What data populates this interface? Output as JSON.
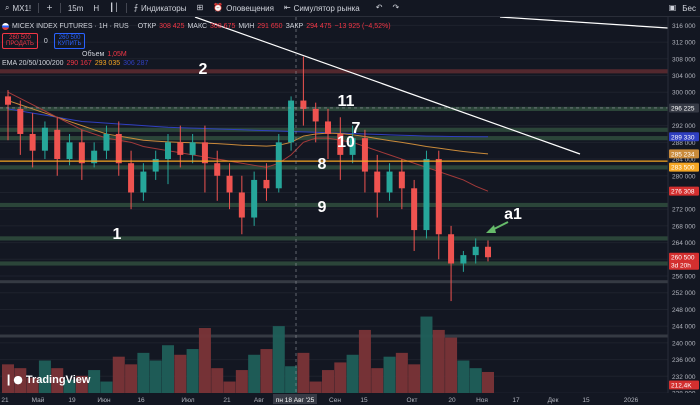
{
  "toolbar": {
    "symbol": "MX1!",
    "add_symbol": "+",
    "interval": "15m",
    "candle_type": "H",
    "indicators_label": "Индикаторы",
    "alerts_label": "Оповещения",
    "replay_label": "Симулятор рынка",
    "right_text": "Бес"
  },
  "legend": {
    "title": "MICEX INDEX FUTURES · 1H · RUS",
    "ohlc": [
      {
        "label": "ОТКР",
        "value": "308 425"
      },
      {
        "label": "МАКС",
        "value": "308 675"
      },
      {
        "label": "МИН",
        "value": "291 650"
      },
      {
        "label": "ЗАКР",
        "value": "294 475"
      }
    ],
    "change": "−13 925 (−4,52%)",
    "sell_price": "260 500",
    "sell_label": "ПРОДАТЬ",
    "spread": "0",
    "buy_price": "260 500",
    "buy_label": "КУПИТЬ",
    "volume_label": "Объем",
    "volume_value": "1,05M",
    "ema_label": "EMA 20/50/100/200",
    "ema_values": [
      "290 167",
      "293 035",
      "306 287"
    ]
  },
  "annotations": [
    "2",
    "11",
    "7",
    "10",
    "8",
    "9",
    "1",
    "a1"
  ],
  "colors": {
    "background": "#131722",
    "up": "#26a69a",
    "down": "#ef5350",
    "zone_green": "#2f4a3c",
    "zone_red": "#5b2a30",
    "orange_line": "#f5a623",
    "trend_line": "#ffffff",
    "ema_orange": "#c98a3a",
    "ema_red": "#a33a3a",
    "ema_blue": "#2f3fbf"
  },
  "icons": [
    "search-icon",
    "plus-icon",
    "bar-chart-icon",
    "indicators-icon",
    "grid-icon",
    "alert-icon",
    "replay-icon",
    "undo-icon",
    "redo-icon",
    "camera-icon",
    "down-arrow-icon",
    "settings-icon",
    "tradingview-logo"
  ],
  "chart_data": {
    "type": "candlestick",
    "title": "MICEX INDEX FUTURES · 1H · RUS",
    "ylim": [
      228000,
      318000
    ],
    "y_ticks": [
      316000,
      312000,
      308000,
      304000,
      300000,
      296000,
      292000,
      288000,
      284000,
      280000,
      276000,
      272000,
      268000,
      264000,
      260000,
      256000,
      252000,
      248000,
      244000,
      240000,
      236000,
      232000,
      228000
    ],
    "x_ticks": [
      "21",
      "Май",
      "19",
      "Июн",
      "16",
      "Июл",
      "21",
      "Авг",
      "пн 18 Авг '25",
      "Сен",
      "15",
      "Окт",
      "20",
      "Ноя",
      "17",
      "Дек",
      "15",
      "2026"
    ],
    "crosshair_x_label": "пн 18 Авг '25",
    "price_labels": [
      {
        "value": "296 225",
        "kind": "crosshair"
      },
      {
        "value": "289 330",
        "kind": "ema-blue"
      },
      {
        "value": "285 234",
        "kind": "ema-orange"
      },
      {
        "value": "283 500",
        "kind": "horizontal-line"
      },
      {
        "value": "276 308",
        "kind": "ema-red"
      },
      {
        "value": "260 500",
        "kind": "last-price"
      },
      {
        "value": "3d 20h",
        "kind": "countdown"
      },
      {
        "value": "212,4K",
        "kind": "volume"
      }
    ],
    "horizontal_line": 283500,
    "zones": [
      {
        "from": 304500,
        "to": 305500,
        "color": "red"
      },
      {
        "from": 295500,
        "to": 296500,
        "color": "green"
      },
      {
        "from": 290500,
        "to": 291500,
        "color": "green"
      },
      {
        "from": 288500,
        "to": 289500,
        "color": "green"
      },
      {
        "from": 281500,
        "to": 282500,
        "color": "green"
      },
      {
        "from": 272500,
        "to": 273500,
        "color": "green"
      },
      {
        "from": 264500,
        "to": 265500,
        "color": "green"
      },
      {
        "from": 258500,
        "to": 259500,
        "color": "green"
      },
      {
        "from": 254500,
        "to": 255000,
        "color": "gray"
      },
      {
        "from": 241500,
        "to": 242000,
        "color": "gray"
      }
    ],
    "candles": [
      {
        "o": 299000,
        "h": 300500,
        "c": 297000,
        "l": 288500
      },
      {
        "o": 296000,
        "h": 298000,
        "c": 290000,
        "l": 285000
      },
      {
        "o": 290000,
        "h": 295000,
        "c": 286000,
        "l": 282000
      },
      {
        "o": 286000,
        "h": 293000,
        "c": 291500,
        "l": 284000
      },
      {
        "o": 291000,
        "h": 294000,
        "c": 284000,
        "l": 280000
      },
      {
        "o": 284000,
        "h": 290000,
        "c": 288000,
        "l": 282500
      },
      {
        "o": 288000,
        "h": 291000,
        "c": 283000,
        "l": 279000
      },
      {
        "o": 283000,
        "h": 288000,
        "c": 286000,
        "l": 282000
      },
      {
        "o": 286000,
        "h": 292000,
        "c": 290000,
        "l": 284000
      },
      {
        "o": 290000,
        "h": 293000,
        "c": 283000,
        "l": 280000
      },
      {
        "o": 283000,
        "h": 286000,
        "c": 276000,
        "l": 272000
      },
      {
        "o": 276000,
        "h": 283000,
        "c": 281000,
        "l": 274000
      },
      {
        "o": 281000,
        "h": 286000,
        "c": 284000,
        "l": 279000
      },
      {
        "o": 284000,
        "h": 290000,
        "c": 288000,
        "l": 278000
      },
      {
        "o": 288000,
        "h": 292000,
        "c": 285000,
        "l": 282000
      },
      {
        "o": 285000,
        "h": 290000,
        "c": 288000,
        "l": 283000
      },
      {
        "o": 288000,
        "h": 292000,
        "c": 283000,
        "l": 276000
      },
      {
        "o": 283000,
        "h": 286000,
        "c": 280000,
        "l": 274000
      },
      {
        "o": 280000,
        "h": 283000,
        "c": 276000,
        "l": 272000
      },
      {
        "o": 276000,
        "h": 280000,
        "c": 270000,
        "l": 266000
      },
      {
        "o": 270000,
        "h": 281000,
        "c": 279000,
        "l": 268000
      },
      {
        "o": 279000,
        "h": 283000,
        "c": 277000,
        "l": 274000
      },
      {
        "o": 277000,
        "h": 290000,
        "c": 288000,
        "l": 276000
      },
      {
        "o": 288000,
        "h": 299000,
        "c": 298000,
        "l": 286000
      },
      {
        "o": 298000,
        "h": 308500,
        "c": 296000,
        "l": 292000
      },
      {
        "o": 296000,
        "h": 297500,
        "c": 293000,
        "l": 288000
      },
      {
        "o": 293000,
        "h": 296000,
        "c": 290000,
        "l": 284000
      },
      {
        "o": 290000,
        "h": 294000,
        "c": 285000,
        "l": 279000
      },
      {
        "o": 285000,
        "h": 292000,
        "c": 289000,
        "l": 283000
      },
      {
        "o": 289000,
        "h": 291000,
        "c": 281000,
        "l": 276000
      },
      {
        "o": 281000,
        "h": 285000,
        "c": 276000,
        "l": 270000
      },
      {
        "o": 276000,
        "h": 283000,
        "c": 281000,
        "l": 274000
      },
      {
        "o": 281000,
        "h": 284000,
        "c": 277000,
        "l": 272000
      },
      {
        "o": 277000,
        "h": 279000,
        "c": 267000,
        "l": 262000
      },
      {
        "o": 267000,
        "h": 286000,
        "c": 284000,
        "l": 265000
      },
      {
        "o": 284000,
        "h": 286000,
        "c": 266000,
        "l": 260000
      },
      {
        "o": 266000,
        "h": 268000,
        "c": 259000,
        "l": 250000
      },
      {
        "o": 259000,
        "h": 262000,
        "c": 261000,
        "l": 257000
      },
      {
        "o": 261000,
        "h": 265000,
        "c": 263000,
        "l": 259000
      },
      {
        "o": 263000,
        "h": 264500,
        "c": 260500,
        "l": 259500
      }
    ],
    "volumes": [
      235000,
      233000,
      228000,
      237000,
      233000,
      227000,
      229000,
      232000,
      226000,
      239000,
      235000,
      241000,
      237000,
      245000,
      240000,
      243000,
      254000,
      233000,
      226000,
      232000,
      240000,
      243000,
      255000,
      234000,
      241000,
      226000,
      232000,
      236000,
      240000,
      253000,
      233000,
      239000,
      241000,
      235000,
      260000,
      253000,
      249000,
      237000,
      233000,
      231000
    ],
    "ema": {
      "blue": [
        296000,
        295500,
        295000,
        294500,
        294000,
        293500,
        293000,
        292800,
        292600,
        292400,
        292200,
        292000,
        291800,
        291600,
        291500,
        291400,
        291300,
        291200,
        291100,
        291000,
        290900,
        290800,
        290700,
        290600,
        290500,
        290400,
        290300,
        290200,
        290100,
        290000,
        289900,
        289800,
        289700,
        289600,
        289500,
        289450,
        289400,
        289380,
        289350,
        289330
      ],
      "orange": [
        298000,
        297000,
        296000,
        295000,
        294000,
        293000,
        292000,
        291000,
        290000,
        289500,
        289000,
        288500,
        288300,
        288100,
        288000,
        287900,
        287800,
        287700,
        287500,
        287300,
        287200,
        287100,
        287300,
        288000,
        289500,
        290000,
        290200,
        290100,
        289800,
        289400,
        288900,
        288400,
        288000,
        287500,
        287000,
        286600,
        286200,
        285800,
        285500,
        285234
      ],
      "red": [
        300000,
        298500,
        297000,
        295500,
        294000,
        292500,
        291000,
        290000,
        289000,
        288500,
        288000,
        287000,
        286500,
        286000,
        285500,
        285000,
        284500,
        284000,
        283500,
        283000,
        282500,
        282000,
        283000,
        285000,
        288000,
        289000,
        289000,
        288500,
        288000,
        287000,
        286000,
        285000,
        284000,
        283000,
        282000,
        281000,
        280000,
        279000,
        277500,
        276308
      ]
    }
  }
}
